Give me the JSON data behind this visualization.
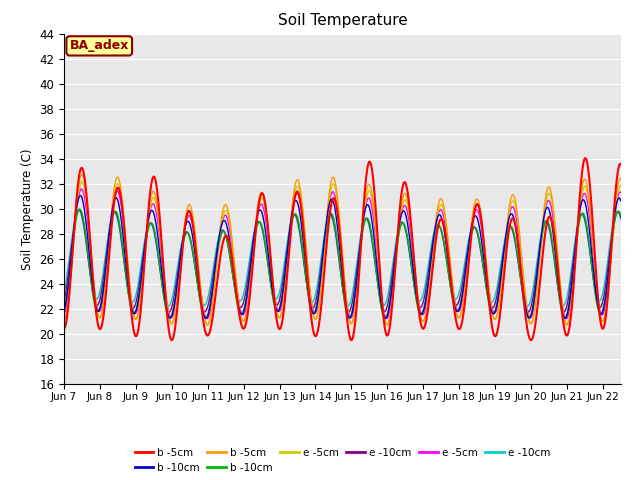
{
  "title": "Soil Temperature",
  "ylabel": "Soil Temperature (C)",
  "xlabel": "",
  "ylim": [
    16,
    44
  ],
  "yticks": [
    16,
    18,
    20,
    22,
    24,
    26,
    28,
    30,
    32,
    34,
    36,
    38,
    40,
    42,
    44
  ],
  "xtick_labels": [
    "Jun 7",
    "Jun 8",
    "Jun 9",
    "Jun 10",
    "Jun 11",
    "Jun 12",
    "Jun 13",
    "Jun 14",
    "Jun 15",
    "Jun 16",
    "Jun 17",
    "Jun 18",
    "Jun 19",
    "Jun 20",
    "Jun 21",
    "Jun 22"
  ],
  "annotation_text": "BA_adex",
  "annotation_color": "#8B0000",
  "annotation_bg": "#FFFF99",
  "series_colors": [
    "#FF0000",
    "#0000CC",
    "#FF9900",
    "#00BB00",
    "#CCCC00",
    "#880088",
    "#FF00FF",
    "#00CCCC"
  ],
  "series_labels": [
    "b -5cm",
    "b -10cm",
    "b -5cm",
    "b -10cm",
    "e -5cm",
    "e -10cm",
    "e -5cm",
    "e -10cm"
  ],
  "background_color": "#E8E8E8",
  "n_days": 15.5,
  "points_per_day": 144
}
